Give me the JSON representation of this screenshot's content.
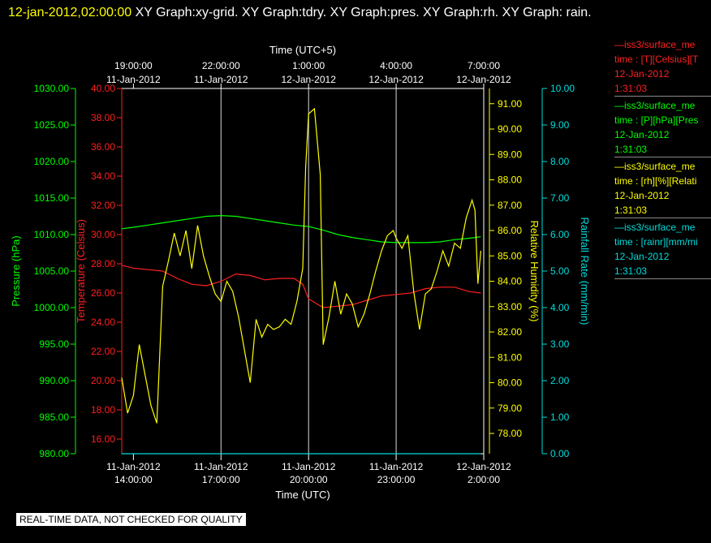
{
  "header": {
    "date": "12-jan-2012,02:00:00",
    "graphs": " XY Graph:xy-grid.  XY Graph:tdry.  XY Graph:pres.  XY Graph:rh.  XY Graph: rain."
  },
  "footer": "REAL-TIME DATA, NOT CHECKED FOR QUALITY",
  "legend": [
    {
      "line1": "iss3/surface_me",
      "line2": "time : [T][Celsius][T",
      "line3": "12-Jan-2012",
      "line4": "1:31:03",
      "color": "#ff2020"
    },
    {
      "line1": "iss3/surface_me",
      "line2": "time : [P][hPa][Pres",
      "line3": "12-Jan-2012",
      "line4": "1:31:03",
      "color": "#00ff00"
    },
    {
      "line1": "iss3/surface_me",
      "line2": "time : [rh][%][Relati",
      "line3": "12-Jan-2012",
      "line4": "1:31:03",
      "color": "#ffff00"
    },
    {
      "line1": "iss3/surface_me",
      "line2": "time : [rainr][mm/mi",
      "line3": "12-Jan-2012",
      "line4": "1:31:03",
      "color": "#00dddd"
    }
  ],
  "chart_data": {
    "type": "line",
    "x_top_label": "Time (UTC+5)",
    "x_bottom_label": "Time (UTC)",
    "x_range_hours": [
      13.6,
      26.0
    ],
    "bottom_ticks": [
      {
        "h": 14,
        "date": "11-Jan-2012",
        "time": "14:00:00"
      },
      {
        "h": 17,
        "date": "11-Jan-2012",
        "time": "17:00:00"
      },
      {
        "h": 20,
        "date": "11-Jan-2012",
        "time": "20:00:00"
      },
      {
        "h": 23,
        "date": "11-Jan-2012",
        "time": "23:00:00"
      },
      {
        "h": 26,
        "date": "12-Jan-2012",
        "time": "2:00:00"
      }
    ],
    "top_ticks": [
      {
        "h": 14,
        "time": "19:00:00",
        "date": "11-Jan-2012"
      },
      {
        "h": 17,
        "time": "22:00:00",
        "date": "11-Jan-2012"
      },
      {
        "h": 20,
        "time": "1:00:00",
        "date": "12-Jan-2012"
      },
      {
        "h": 23,
        "time": "4:00:00",
        "date": "12-Jan-2012"
      },
      {
        "h": 26,
        "time": "7:00:00",
        "date": "12-Jan-2012"
      }
    ],
    "grid_vertical_hours": [
      17,
      20,
      23
    ],
    "axes": {
      "pressure": {
        "label": "Pressure (hPa)",
        "range": [
          980,
          1030
        ],
        "step": 5,
        "decimals": 2,
        "color": "#00ff00",
        "side": "left"
      },
      "temperature": {
        "label": "Temperature (Celsius)",
        "range": [
          15,
          40
        ],
        "tick_from": 16,
        "step": 2,
        "decimals": 2,
        "color": "#ff2020",
        "side": "left"
      },
      "humidity": {
        "label": "Relative Humidity (%)",
        "range": [
          77.2,
          91.6
        ],
        "tick_from": 78,
        "step": 1,
        "decimals": 2,
        "color": "#ffff00",
        "side": "right"
      },
      "rain": {
        "label": "Rainfall Rate (mm/min)",
        "range": [
          0,
          10
        ],
        "step": 1,
        "decimals": 2,
        "color": "#00dddd",
        "side": "right"
      }
    },
    "series": [
      {
        "axis": "pressure",
        "color": "#00ff00",
        "x": [
          13.6,
          14.0,
          14.5,
          15.0,
          15.5,
          16.0,
          16.5,
          17.0,
          17.5,
          18.0,
          18.5,
          19.0,
          19.5,
          20.0,
          20.5,
          21.0,
          21.5,
          22.0,
          22.5,
          23.0,
          23.5,
          24.0,
          24.5,
          25.0,
          25.5,
          25.9
        ],
        "y": [
          1010.8,
          1011.0,
          1011.3,
          1011.6,
          1011.9,
          1012.2,
          1012.5,
          1012.6,
          1012.5,
          1012.2,
          1011.9,
          1011.6,
          1011.3,
          1011.1,
          1010.6,
          1010.0,
          1009.6,
          1009.3,
          1009.0,
          1008.9,
          1008.9,
          1008.9,
          1009.0,
          1009.3,
          1009.5,
          1009.7
        ]
      },
      {
        "axis": "temperature",
        "color": "#ff2020",
        "x": [
          13.6,
          14.0,
          14.5,
          15.0,
          15.5,
          16.0,
          16.5,
          17.0,
          17.5,
          18.0,
          18.5,
          19.0,
          19.5,
          19.8,
          20.0,
          20.5,
          21.0,
          21.5,
          22.0,
          22.5,
          23.0,
          23.5,
          24.0,
          24.5,
          25.0,
          25.5,
          25.9
        ],
        "y": [
          27.9,
          27.7,
          27.6,
          27.5,
          27.0,
          26.6,
          26.5,
          26.8,
          27.3,
          27.2,
          26.9,
          27.0,
          27.0,
          26.6,
          25.6,
          25.0,
          25.1,
          25.2,
          25.5,
          25.8,
          25.9,
          26.0,
          26.3,
          26.4,
          26.4,
          26.1,
          26.0
        ]
      },
      {
        "axis": "humidity",
        "color": "#ffff00",
        "x": [
          13.6,
          13.8,
          14.0,
          14.2,
          14.4,
          14.6,
          14.8,
          15.0,
          15.2,
          15.4,
          15.6,
          15.8,
          16.0,
          16.2,
          16.4,
          16.6,
          16.8,
          17.0,
          17.2,
          17.4,
          17.6,
          17.8,
          18.0,
          18.2,
          18.4,
          18.6,
          18.8,
          19.0,
          19.2,
          19.4,
          19.6,
          19.8,
          19.9,
          20.0,
          20.2,
          20.4,
          20.5,
          20.7,
          20.9,
          21.1,
          21.3,
          21.5,
          21.7,
          21.9,
          22.1,
          22.3,
          22.5,
          22.7,
          22.9,
          23.0,
          23.2,
          23.4,
          23.6,
          23.8,
          24.0,
          24.2,
          24.4,
          24.6,
          24.8,
          25.0,
          25.2,
          25.4,
          25.6,
          25.7,
          25.8,
          25.9
        ],
        "y": [
          80.2,
          78.8,
          79.5,
          81.5,
          80.3,
          79.1,
          78.4,
          83.8,
          84.8,
          85.9,
          85.0,
          86.0,
          84.5,
          86.2,
          85.0,
          84.2,
          83.5,
          83.2,
          84.0,
          83.6,
          82.6,
          81.3,
          80.0,
          82.5,
          81.8,
          82.3,
          82.1,
          82.2,
          82.5,
          82.3,
          83.2,
          84.5,
          88.5,
          90.6,
          90.8,
          88.2,
          81.5,
          82.6,
          84.0,
          82.7,
          83.5,
          83.1,
          82.2,
          82.7,
          83.5,
          84.4,
          85.2,
          85.8,
          86.0,
          85.7,
          85.3,
          85.8,
          83.6,
          82.1,
          83.5,
          83.7,
          84.4,
          85.2,
          84.6,
          85.5,
          85.3,
          86.5,
          87.2,
          86.8,
          83.9,
          85.2
        ]
      },
      {
        "axis": "rain",
        "color": "#00dddd",
        "x": [
          13.6,
          25.9
        ],
        "y": [
          0.0,
          0.0
        ]
      }
    ]
  }
}
